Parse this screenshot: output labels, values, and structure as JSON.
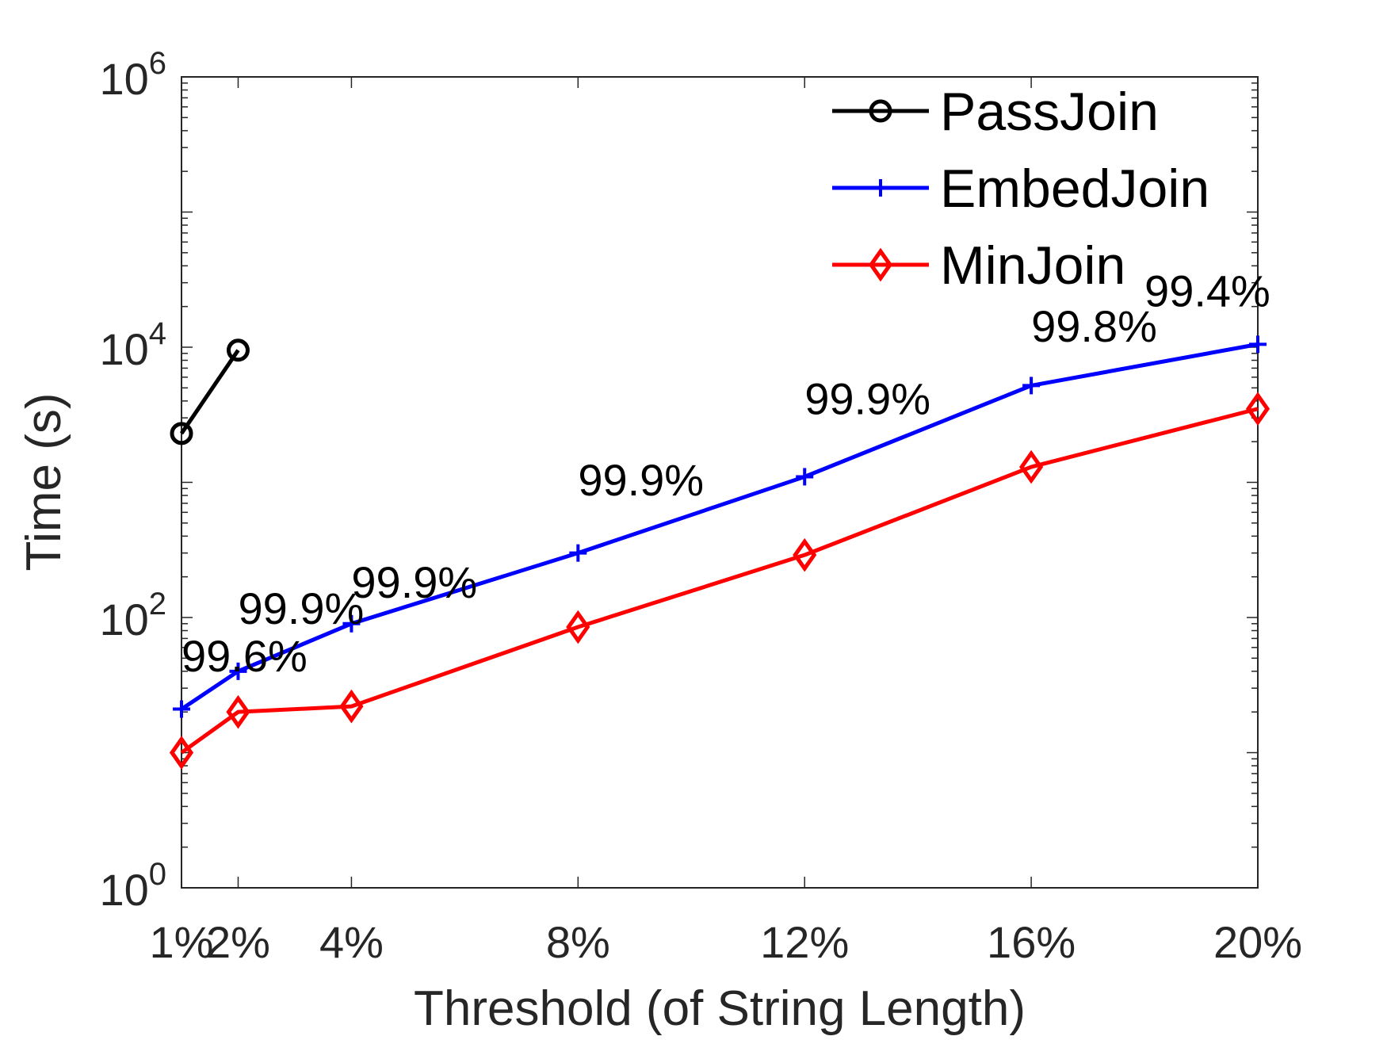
{
  "chart_data": {
    "type": "line",
    "title": "",
    "xlabel": "Threshold (of String Length)",
    "ylabel": "Time (s)",
    "yscale": "log",
    "ylim": [
      1,
      1000000
    ],
    "x": [
      1,
      2,
      4,
      8,
      12,
      16,
      20
    ],
    "x_tick_labels": [
      "1%",
      "2%",
      "4%",
      "8%",
      "12%",
      "16%",
      "20%"
    ],
    "y_ticks": [
      {
        "value": 1,
        "base": "10",
        "exp": "0"
      },
      {
        "value": 100,
        "base": "10",
        "exp": "2"
      },
      {
        "value": 10000,
        "base": "10",
        "exp": "4"
      },
      {
        "value": 1000000,
        "base": "10",
        "exp": "6"
      }
    ],
    "legend_position": "top-right",
    "series": [
      {
        "name": "PassJoin",
        "color": "#000000",
        "marker": "circle",
        "x": [
          1,
          2
        ],
        "values": [
          2300,
          9500
        ]
      },
      {
        "name": "EmbedJoin",
        "color": "#0000ff",
        "marker": "plus",
        "x": [
          1,
          2,
          4,
          8,
          12,
          16,
          20
        ],
        "values": [
          21,
          40,
          90,
          300,
          1100,
          5200,
          10500
        ]
      },
      {
        "name": "MinJoin",
        "color": "#ff0000",
        "marker": "diamond",
        "x": [
          1,
          2,
          4,
          8,
          12,
          16,
          20
        ],
        "values": [
          10,
          20,
          22,
          85,
          290,
          1300,
          3500
        ]
      }
    ],
    "annotations": [
      {
        "text": "99.6%",
        "x": 1,
        "y": 40
      },
      {
        "text": "99.9%",
        "x": 2,
        "y": 90
      },
      {
        "text": "99.9%",
        "x": 4,
        "y": 140
      },
      {
        "text": "99.9%",
        "x": 8,
        "y": 800
      },
      {
        "text": "99.9%",
        "x": 12,
        "y": 3200
      },
      {
        "text": "99.8%",
        "x": 16,
        "y": 11000
      },
      {
        "text": "99.4%",
        "x": 18,
        "y": 20000
      }
    ]
  }
}
